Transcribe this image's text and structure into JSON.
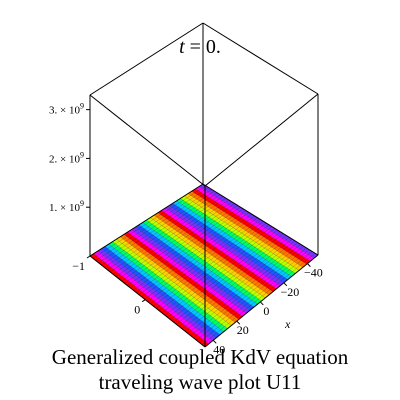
{
  "chart_data": {
    "type": "surface3d",
    "title_var": "t",
    "title_eq": " = 0.",
    "axis_x_label": "x",
    "x_ticks": [
      "40",
      "20",
      "0",
      "−20",
      "−40"
    ],
    "y_ticks": [
      "−1",
      "0"
    ],
    "z_ticks": [
      {
        "mant": "1. × 10",
        "exp": "9"
      },
      {
        "mant": "2. × 10",
        "exp": "9"
      },
      {
        "mant": "3. × 10",
        "exp": "9"
      }
    ],
    "z_range": [
      0,
      3300000000.0
    ],
    "surface_level": 0,
    "stripe_colors": [
      "#ff0000",
      "#ff00ff",
      "#7a33ff",
      "#2255ff",
      "#00c8ff",
      "#00ff66",
      "#bfff00",
      "#ffd000",
      "#ff7700"
    ]
  },
  "caption": {
    "line1": "Generalized coupled KdV equation",
    "line2": "traveling wave plot U11"
  }
}
